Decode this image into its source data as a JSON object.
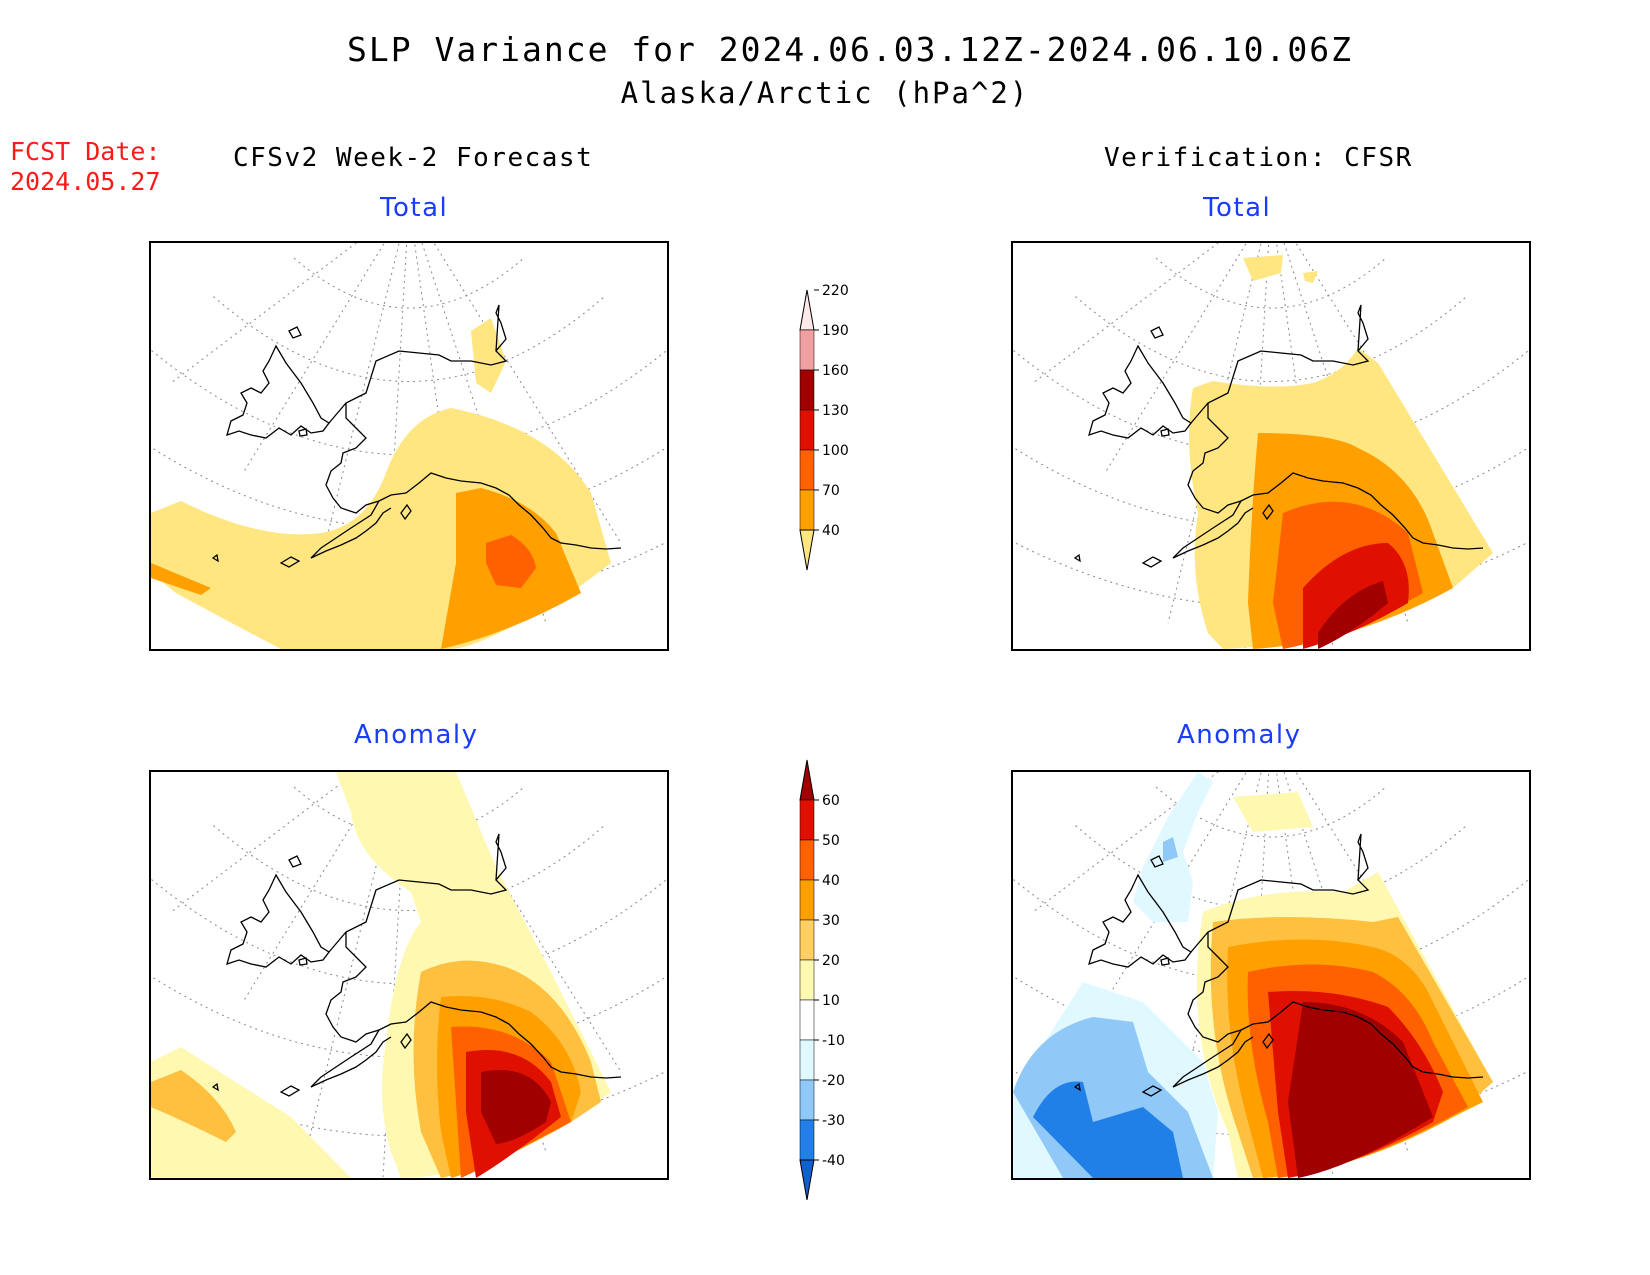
{
  "title": "SLP Variance for 2024.06.03.12Z-2024.06.10.06Z",
  "subtitle": "Alaska/Arctic (hPa^2)",
  "fcst_date_label": "FCST Date:",
  "fcst_date_value": "2024.05.27",
  "left_column_title": "CFSv2 Week-2 Forecast",
  "right_column_title": "Verification: CFSR",
  "panels": {
    "forecast_total": {
      "label": "Total"
    },
    "forecast_anomaly": {
      "label": "Anomaly"
    },
    "verification_total": {
      "label": "Total"
    },
    "verification_anomaly": {
      "label": "Anomaly"
    }
  },
  "colorbars": {
    "total": {
      "ticks": [
        "40",
        "70",
        "100",
        "130",
        "160",
        "190",
        "220"
      ],
      "colors": [
        "#ffe680",
        "#ffa000",
        "#ff6000",
        "#e01000",
        "#a00000",
        "#f0a0a0",
        "#ffe8e8"
      ]
    },
    "anomaly": {
      "ticks": [
        "-40",
        "-30",
        "-20",
        "-10",
        "10",
        "20",
        "30",
        "40",
        "50",
        "60"
      ],
      "colors": [
        "#1060d0",
        "#2080e8",
        "#90c8f8",
        "#e0f8ff",
        "#ffffff",
        "#fff8b0",
        "#ffd060",
        "#ffa000",
        "#ff6000",
        "#e01000",
        "#a00000"
      ]
    }
  },
  "shading": {
    "yellow": "#ffe680",
    "orange": "#ffa000",
    "dark_orange": "#ff6000",
    "red": "#e01000",
    "dark_red": "#a00000",
    "light_yellow": "#fff8b0",
    "light_orange": "#ffc040",
    "light_blue": "#e0f8ff",
    "mid_blue": "#90c8f8",
    "blue": "#2080e8"
  }
}
